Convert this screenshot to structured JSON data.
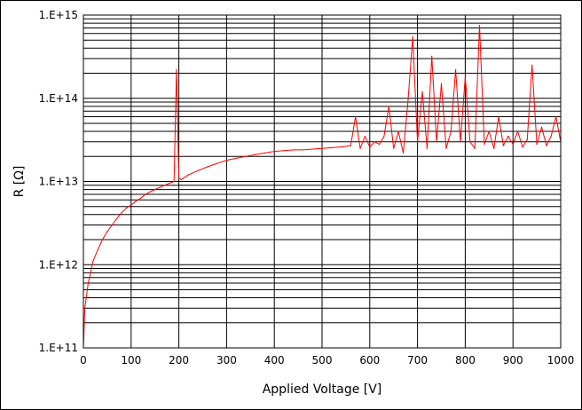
{
  "chart_data": {
    "type": "line",
    "title": "",
    "xlabel": "Applied Voltage [V]",
    "ylabel": "R [Ω]",
    "xlim": [
      0,
      1000
    ],
    "ylim": [
      100000000000.0,
      1000000000000000.0
    ],
    "yscale": "log",
    "x_ticks": [
      0,
      100,
      200,
      300,
      400,
      500,
      600,
      700,
      800,
      900,
      1000
    ],
    "x_tick_labels": [
      "0",
      "100",
      "200",
      "300",
      "400",
      "500",
      "600",
      "700",
      "800",
      "900",
      "1000"
    ],
    "y_ticks": [
      100000000000.0,
      1000000000000.0,
      10000000000000.0,
      100000000000000.0,
      1000000000000000.0
    ],
    "y_tick_labels": [
      "1.E+11",
      "1.E+12",
      "1.E+13",
      "1.E+14",
      "1.E+15"
    ],
    "grid": true,
    "legend": "none",
    "colors": {
      "series": "#ff0000",
      "grid": "#000000",
      "axes": "#000000"
    },
    "series": [
      {
        "name": "",
        "x": [
          0,
          3,
          6,
          10,
          15,
          20,
          30,
          40,
          50,
          60,
          70,
          80,
          90,
          100,
          110,
          120,
          130,
          140,
          150,
          160,
          170,
          180,
          190,
          195,
          200,
          205,
          210,
          220,
          240,
          260,
          280,
          300,
          320,
          340,
          360,
          380,
          400,
          420,
          440,
          460,
          480,
          500,
          520,
          540,
          560,
          570,
          580,
          590,
          600,
          610,
          620,
          630,
          640,
          650,
          660,
          670,
          680,
          690,
          700,
          710,
          720,
          730,
          740,
          750,
          760,
          770,
          780,
          790,
          800,
          810,
          820,
          830,
          840,
          850,
          860,
          870,
          880,
          890,
          900,
          910,
          920,
          930,
          940,
          950,
          960,
          970,
          980,
          990,
          1000
        ],
        "y": [
          100000000000.0,
          300000000000.0,
          400000000000.0,
          600000000000.0,
          800000000000.0,
          1100000000000.0,
          1500000000000.0,
          2000000000000.0,
          2500000000000.0,
          3000000000000.0,
          3600000000000.0,
          4200000000000.0,
          4800000000000.0,
          5200000000000.0,
          5800000000000.0,
          6300000000000.0,
          7000000000000.0,
          7500000000000.0,
          8000000000000.0,
          8500000000000.0,
          9000000000000.0,
          9500000000000.0,
          10000000000000.0,
          220000000000000.0,
          11000000000000.0,
          10500000000000.0,
          11000000000000.0,
          12000000000000.0,
          13500000000000.0,
          15000000000000.0,
          16500000000000.0,
          18000000000000.0,
          19000000000000.0,
          20000000000000.0,
          21000000000000.0,
          22000000000000.0,
          23000000000000.0,
          23500000000000.0,
          24000000000000.0,
          24000000000000.0,
          24500000000000.0,
          25000000000000.0,
          25500000000000.0,
          26000000000000.0,
          27000000000000.0,
          60000000000000.0,
          25000000000000.0,
          35000000000000.0,
          26000000000000.0,
          30000000000000.0,
          28000000000000.0,
          35000000000000.0,
          80000000000000.0,
          25000000000000.0,
          40000000000000.0,
          22000000000000.0,
          90000000000000.0,
          550000000000000.0,
          30000000000000.0,
          120000000000000.0,
          25000000000000.0,
          320000000000000.0,
          30000000000000.0,
          150000000000000.0,
          25000000000000.0,
          40000000000000.0,
          220000000000000.0,
          30000000000000.0,
          180000000000000.0,
          30000000000000.0,
          25000000000000.0,
          750000000000000.0,
          28000000000000.0,
          40000000000000.0,
          25000000000000.0,
          60000000000000.0,
          27000000000000.0,
          35000000000000.0,
          28000000000000.0,
          40000000000000.0,
          26000000000000.0,
          32000000000000.0,
          250000000000000.0,
          28000000000000.0,
          45000000000000.0,
          27000000000000.0,
          35000000000000.0,
          60000000000000.0,
          30000000000000.0
        ]
      }
    ]
  }
}
